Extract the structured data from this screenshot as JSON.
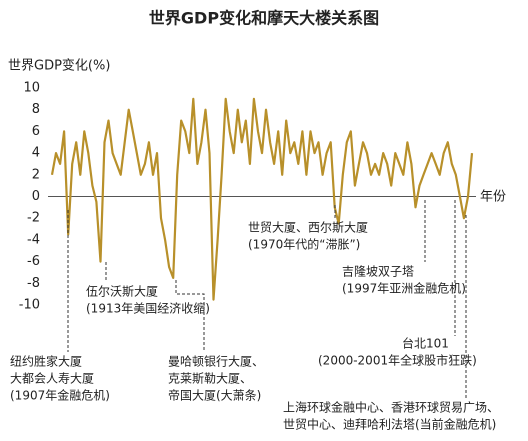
{
  "chart_data": {
    "type": "line",
    "title": "世界GDP变化和摩天大楼关系图",
    "y_label": "世界GDP变化(%)",
    "x_label": "年份",
    "color": "#b8902a",
    "ylim": [
      -10,
      10
    ],
    "yticks": [
      10,
      8,
      6,
      4,
      2,
      0,
      -2,
      -4,
      -6,
      -8,
      -10
    ],
    "values": [
      2,
      4,
      3,
      6,
      -3.5,
      3,
      5,
      2,
      6,
      4,
      1,
      -0.5,
      -6,
      5,
      7,
      4,
      3,
      2,
      5,
      8,
      6,
      4,
      2,
      3,
      5,
      2,
      4,
      -2,
      -4,
      -6.5,
      -7.5,
      2,
      7,
      6,
      4,
      9,
      3,
      5,
      8,
      4,
      -9.5,
      -4,
      2,
      9,
      6,
      4,
      8,
      5,
      7,
      3,
      9,
      6,
      4,
      8,
      5,
      3,
      6,
      2,
      7,
      4,
      5,
      3,
      6,
      2,
      6,
      4,
      5,
      2,
      4,
      5,
      -1,
      -2.5,
      2,
      5,
      6,
      1,
      3,
      5,
      4,
      2,
      3,
      2,
      4,
      3,
      1,
      4,
      3,
      2,
      5,
      3,
      -1,
      1,
      2,
      3,
      4,
      3,
      2,
      4,
      5,
      3,
      2,
      0,
      -2,
      0,
      4
    ],
    "annotations": [
      {
        "lines": [
          "纽约胜家大厦",
          "大都会人寿大厦",
          "(1907年金融危机)"
        ]
      },
      {
        "lines": [
          "伍尔沃斯大厦",
          "(1913年美国经济收缩)"
        ]
      },
      {
        "lines": [
          "曼哈顿银行大厦、",
          "克莱斯勒大厦、",
          "帝国大厦(大萧条)"
        ]
      },
      {
        "lines": [
          "世贸大厦、西尔斯大厦",
          "(1970年代的“滞胀”)"
        ]
      },
      {
        "lines": [
          "吉隆坡双子塔",
          "(1997年亚洲金融危机)"
        ]
      },
      {
        "lines": [
          "台北101",
          "(2000-2001年全球股市狂跌)"
        ]
      },
      {
        "lines": [
          "上海环球金融中心、香港环球贸易广场、",
          "世贸中心、迪拜哈利法塔(当前金融危机)"
        ]
      }
    ]
  }
}
